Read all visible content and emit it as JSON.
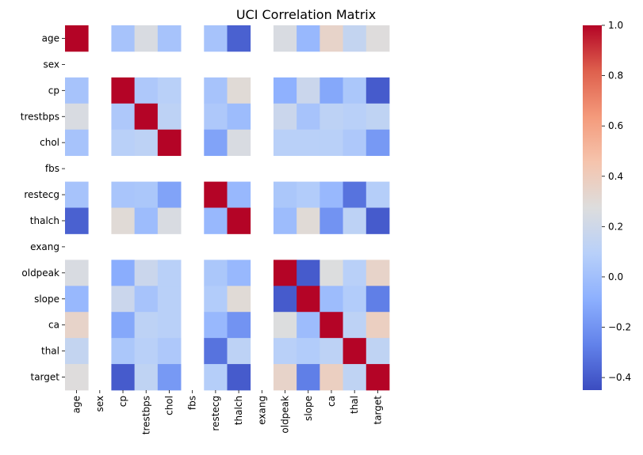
{
  "chart_data": {
    "type": "heatmap",
    "title": "UCI Correlation Matrix",
    "xlabel": "",
    "ylabel": "",
    "variables": [
      "age",
      "sex",
      "cp",
      "trestbps",
      "chol",
      "fbs",
      "restecg",
      "thalch",
      "exang",
      "oldpeak",
      "slope",
      "ca",
      "thal",
      "target"
    ],
    "values": [
      [
        1.0,
        null,
        0.02,
        0.25,
        0.02,
        null,
        0.02,
        -0.38,
        null,
        0.25,
        -0.04,
        0.35,
        0.15,
        0.28
      ],
      [
        null,
        null,
        null,
        null,
        null,
        null,
        null,
        null,
        null,
        null,
        null,
        null,
        null,
        null
      ],
      [
        0.02,
        null,
        1.0,
        0.05,
        0.1,
        null,
        0.02,
        0.3,
        null,
        -0.08,
        0.18,
        -0.12,
        0.04,
        -0.4
      ],
      [
        0.25,
        null,
        0.05,
        1.0,
        0.12,
        null,
        0.05,
        -0.02,
        null,
        0.18,
        0.02,
        0.12,
        0.1,
        0.13
      ],
      [
        0.02,
        null,
        0.1,
        0.12,
        1.0,
        null,
        -0.14,
        0.25,
        null,
        0.1,
        0.1,
        0.1,
        0.05,
        -0.18
      ],
      [
        null,
        null,
        null,
        null,
        null,
        null,
        null,
        null,
        null,
        null,
        null,
        null,
        null,
        null
      ],
      [
        0.02,
        null,
        0.03,
        0.04,
        -0.14,
        null,
        1.0,
        -0.04,
        null,
        0.04,
        0.07,
        -0.04,
        -0.32,
        0.08
      ],
      [
        -0.38,
        null,
        0.3,
        -0.02,
        0.25,
        null,
        -0.04,
        1.0,
        null,
        -0.02,
        0.3,
        -0.2,
        0.12,
        -0.4
      ],
      [
        null,
        null,
        null,
        null,
        null,
        null,
        null,
        null,
        null,
        null,
        null,
        null,
        null,
        null
      ],
      [
        0.25,
        null,
        -0.1,
        0.18,
        0.1,
        null,
        0.04,
        -0.04,
        null,
        1.0,
        -0.4,
        0.27,
        0.1,
        0.35
      ],
      [
        -0.04,
        null,
        0.18,
        0.02,
        0.1,
        null,
        0.07,
        0.3,
        null,
        -0.4,
        1.0,
        -0.02,
        0.07,
        -0.28
      ],
      [
        0.35,
        null,
        -0.12,
        0.12,
        0.1,
        null,
        -0.04,
        -0.2,
        null,
        0.27,
        -0.02,
        1.0,
        0.12,
        0.38
      ],
      [
        0.15,
        null,
        0.04,
        0.1,
        0.05,
        null,
        -0.32,
        0.12,
        null,
        0.1,
        0.07,
        0.12,
        1.0,
        0.13
      ],
      [
        0.28,
        null,
        -0.4,
        0.13,
        -0.18,
        null,
        0.08,
        -0.4,
        null,
        0.35,
        -0.28,
        0.38,
        0.13,
        1.0
      ]
    ],
    "colormap": "coolwarm",
    "vmin": -0.45,
    "vmax": 1.0,
    "colorbar": {
      "ticks": [
        -0.4,
        -0.2,
        0.0,
        0.2,
        0.4,
        0.6,
        0.8,
        1.0
      ],
      "tick_labels": [
        "−0.4",
        "−0.2",
        "0.0",
        "0.2",
        "0.4",
        "0.6",
        "0.8",
        "1.0"
      ],
      "placement": "right"
    },
    "grid": false,
    "missing_cells": "blank"
  }
}
